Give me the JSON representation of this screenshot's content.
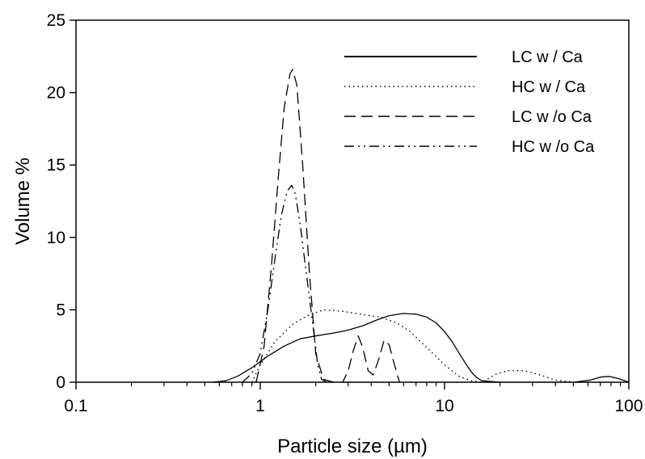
{
  "chart_data": {
    "type": "line",
    "title": "",
    "xlabel": "Particle size (µm)",
    "ylabel": "Volume %",
    "x_scale": "log",
    "xlim": [
      0.1,
      100
    ],
    "ylim": [
      0,
      25
    ],
    "x_ticks": [
      {
        "value": 0.1,
        "label": "0.1"
      },
      {
        "value": 1,
        "label": "1"
      },
      {
        "value": 10,
        "label": "10"
      },
      {
        "value": 100,
        "label": "100"
      }
    ],
    "y_ticks": [
      {
        "value": 0,
        "label": "0"
      },
      {
        "value": 5,
        "label": "5"
      },
      {
        "value": 10,
        "label": "10"
      },
      {
        "value": 15,
        "label": "15"
      },
      {
        "value": 20,
        "label": "20"
      },
      {
        "value": 25,
        "label": "25"
      }
    ],
    "grid": false,
    "legend_position": "top-right",
    "series": [
      {
        "name": "LC w / Ca",
        "dash": "solid",
        "x": [
          0.55,
          0.65,
          0.75,
          0.9,
          1.1,
          1.35,
          1.65,
          2.0,
          2.5,
          3.0,
          3.6,
          4.3,
          5.0,
          6.0,
          7.0,
          8.0,
          9.0,
          10.0,
          11.0,
          12.0,
          13.0,
          14.0,
          15.0,
          16.0,
          20.0,
          30.0,
          50.0,
          62.0,
          70.0,
          78.0,
          88.0,
          100.0
        ],
        "y": [
          0.0,
          0.1,
          0.4,
          1.0,
          1.8,
          2.5,
          3.0,
          3.2,
          3.4,
          3.6,
          3.9,
          4.3,
          4.6,
          4.75,
          4.7,
          4.5,
          4.1,
          3.5,
          2.8,
          2.0,
          1.3,
          0.7,
          0.3,
          0.1,
          0.0,
          0.0,
          0.0,
          0.15,
          0.35,
          0.4,
          0.25,
          0.0
        ]
      },
      {
        "name": "HC w / Ca",
        "dash": "dotted",
        "x": [
          0.9,
          1.0,
          1.2,
          1.5,
          1.8,
          2.2,
          2.8,
          3.5,
          4.5,
          5.5,
          6.5,
          8.0,
          10.0,
          12.0,
          14.0,
          16.0,
          17.0,
          19.0,
          22.0,
          27.0,
          33.0,
          40.0,
          50.0
        ],
        "y": [
          0.0,
          1.2,
          2.8,
          4.0,
          4.6,
          5.0,
          4.9,
          4.7,
          4.5,
          4.1,
          3.5,
          2.4,
          1.2,
          0.4,
          0.1,
          0.0,
          0.2,
          0.55,
          0.8,
          0.8,
          0.5,
          0.15,
          0.0
        ]
      },
      {
        "name": "LC w /o Ca",
        "dash": "dashed",
        "x": [
          0.95,
          1.05,
          1.15,
          1.25,
          1.35,
          1.45,
          1.5,
          1.58,
          1.7,
          1.85,
          2.0,
          2.2,
          2.5,
          2.8,
          3.0,
          3.2,
          3.4,
          3.6,
          3.85,
          4.1,
          4.4,
          4.7,
          5.0,
          5.3,
          5.7
        ],
        "y": [
          0.0,
          2.5,
          8.0,
          14.0,
          19.0,
          21.3,
          21.6,
          20.5,
          15.0,
          7.5,
          2.0,
          0.2,
          0.0,
          0.0,
          0.8,
          2.2,
          3.2,
          2.4,
          0.8,
          0.5,
          1.6,
          2.9,
          2.6,
          1.4,
          0.0
        ]
      },
      {
        "name": "HC w /o Ca",
        "dash": "dashdotdot",
        "x": [
          0.8,
          0.9,
          1.0,
          1.1,
          1.2,
          1.3,
          1.4,
          1.48,
          1.55,
          1.65,
          1.8,
          1.95,
          2.05,
          2.15,
          2.3,
          2.6,
          3.0,
          3.5,
          4.0,
          4.5,
          5.0
        ],
        "y": [
          0.0,
          0.6,
          2.0,
          5.0,
          8.5,
          11.5,
          13.2,
          13.6,
          13.0,
          10.8,
          7.0,
          3.5,
          1.2,
          0.2,
          0.0,
          0.0,
          0.0,
          0.0,
          0.0,
          0.0,
          0.0
        ]
      }
    ]
  }
}
